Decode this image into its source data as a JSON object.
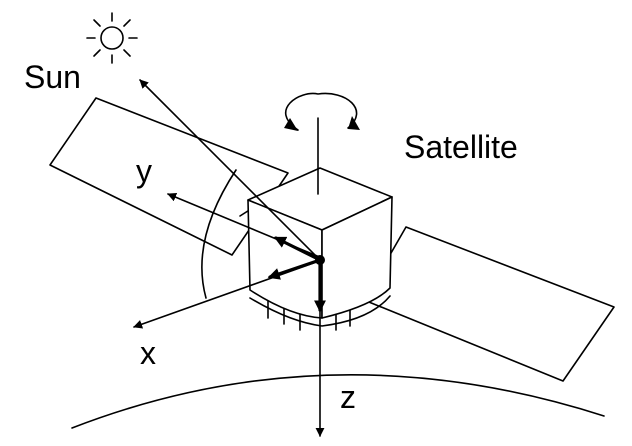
{
  "labels": {
    "sun": "Sun",
    "satellite": "Satellite",
    "x_axis": "x",
    "y_axis": "y",
    "z_axis": "z"
  },
  "icons": {
    "sun": "sun-icon",
    "rotation": "rotation-arrow-icon"
  },
  "colors": {
    "stroke": "#000000",
    "background": "#ffffff"
  }
}
